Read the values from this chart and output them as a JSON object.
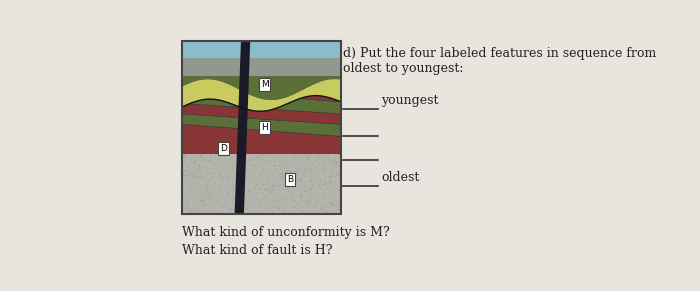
{
  "background_color": "#e8e4de",
  "title_text": "d) Put the four labeled features in sequence from\noldest to youngest:",
  "youngest_label": "youngest",
  "oldest_label": "oldest",
  "question1": "What kind of unconformity is M?",
  "question2": "What kind of fault is H?",
  "text_color": "#222222",
  "line_color": "#333333",
  "colors": {
    "blue_top": "#8bbccc",
    "gray_upper": "#9a9e9a",
    "yellow_green": "#c8cc60",
    "dark_green": "#5a7038",
    "medium_green": "#6a8040",
    "maroon": "#8a3535",
    "dark_maroon": "#6a2828",
    "granite": "#b8b8b0",
    "fault": "#1a1a28"
  }
}
